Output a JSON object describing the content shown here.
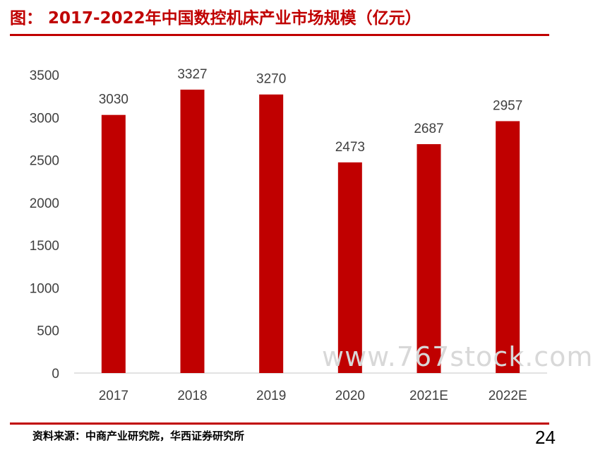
{
  "header": {
    "title": "图： 2017-2022年中国数控机床产业市场规模（亿元）"
  },
  "chart_data": {
    "type": "bar",
    "categories": [
      "2017",
      "2018",
      "2019",
      "2020",
      "2021E",
      "2022E"
    ],
    "values": [
      3030,
      3327,
      3270,
      2473,
      2687,
      2957
    ],
    "title": "",
    "xlabel": "",
    "ylabel": "",
    "ylim": [
      0,
      3500
    ],
    "yticks": [
      "0",
      "500",
      "1000",
      "1500",
      "2000",
      "2500",
      "3000",
      "3500"
    ],
    "bar_color": "#c00000",
    "grid": false,
    "legend": false
  },
  "watermark": "www.767stock.com",
  "footer": {
    "source": "资料来源：中商产业研究院，华西证券研究所",
    "page_number": "24"
  },
  "colors": {
    "accent": "#c00000",
    "text": "#404040",
    "axis": "#d9d9d9"
  }
}
